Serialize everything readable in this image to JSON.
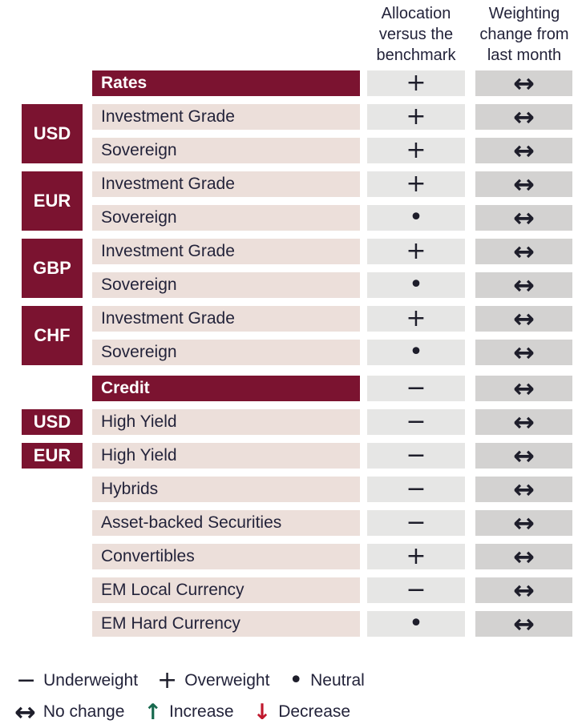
{
  "header": {
    "allocation": [
      "Allocation",
      "versus the",
      "benchmark"
    ],
    "weighting": [
      "Weighting",
      "change from",
      "last month"
    ]
  },
  "symbols": {
    "plus": "+",
    "minus": "−",
    "neutral": "•",
    "nochange": "↔",
    "increase": "↑",
    "decrease": "↓"
  },
  "table": {
    "rows": [
      {
        "kind": "section",
        "label": "Rates",
        "alloc": "plus",
        "weight": "nochange"
      },
      {
        "kind": "item",
        "currency": "USD",
        "span": 2,
        "label": "Investment Grade",
        "alloc": "plus",
        "weight": "nochange"
      },
      {
        "kind": "item",
        "label": "Sovereign",
        "alloc": "plus",
        "weight": "nochange"
      },
      {
        "kind": "item",
        "currency": "EUR",
        "span": 2,
        "label": "Investment Grade",
        "alloc": "plus",
        "weight": "nochange"
      },
      {
        "kind": "item",
        "label": "Sovereign",
        "alloc": "neutral",
        "weight": "nochange"
      },
      {
        "kind": "item",
        "currency": "GBP",
        "span": 2,
        "label": "Investment Grade",
        "alloc": "plus",
        "weight": "nochange"
      },
      {
        "kind": "item",
        "label": "Sovereign",
        "alloc": "neutral",
        "weight": "nochange"
      },
      {
        "kind": "item",
        "currency": "CHF",
        "span": 2,
        "label": "Investment Grade",
        "alloc": "plus",
        "weight": "nochange"
      },
      {
        "kind": "item",
        "label": "Sovereign",
        "alloc": "neutral",
        "weight": "nochange"
      },
      {
        "kind": "section",
        "label": "Credit",
        "alloc": "minus",
        "weight": "nochange"
      },
      {
        "kind": "item",
        "currency": "USD",
        "span": 1,
        "label": "High Yield",
        "alloc": "minus",
        "weight": "nochange"
      },
      {
        "kind": "item",
        "currency": "EUR",
        "span": 1,
        "label": "High Yield",
        "alloc": "minus",
        "weight": "nochange"
      },
      {
        "kind": "item",
        "label": "Hybrids",
        "alloc": "minus",
        "weight": "nochange"
      },
      {
        "kind": "item",
        "label": "Asset-backed Securities",
        "alloc": "minus",
        "weight": "nochange"
      },
      {
        "kind": "item",
        "label": "Convertibles",
        "alloc": "plus",
        "weight": "nochange"
      },
      {
        "kind": "item",
        "label": "EM Local Currency",
        "alloc": "minus",
        "weight": "nochange"
      },
      {
        "kind": "item",
        "label": "EM Hard Currency",
        "alloc": "neutral",
        "weight": "nochange"
      }
    ]
  },
  "legend": {
    "row1": [
      {
        "sym": "minus",
        "label": "Underweight"
      },
      {
        "sym": "plus",
        "label": "Overweight"
      },
      {
        "sym": "neutral",
        "label": "Neutral"
      }
    ],
    "row2": [
      {
        "sym": "nochange",
        "label": "No change"
      },
      {
        "sym": "increase",
        "label": "Increase",
        "color_key": "green"
      },
      {
        "sym": "decrease",
        "label": "Decrease",
        "color_key": "red"
      }
    ]
  },
  "colors": {
    "maroon": "#7b1330",
    "pink": "#ecdfda",
    "cell_light": "#e6e6e5",
    "cell_dark": "#d3d2d1",
    "text": "#23233a",
    "symbol": "#1e1e2b",
    "green": "#17694e",
    "red": "#c0182d"
  }
}
